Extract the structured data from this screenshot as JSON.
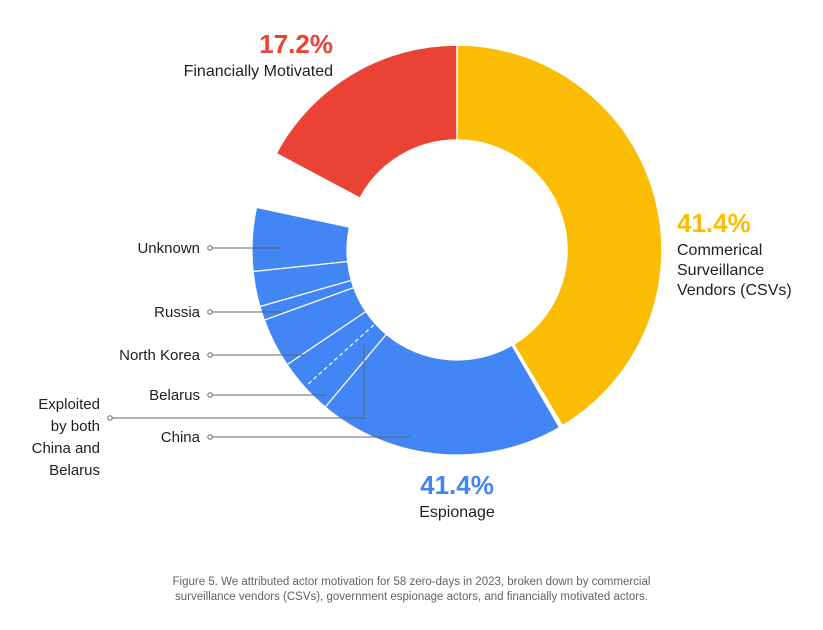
{
  "chart_data": {
    "type": "pie",
    "donut": true,
    "slices": [
      {
        "label_lines": [
          "Commerical",
          "Surveillance",
          "Vendors (CSVs)"
        ],
        "value": 41.4,
        "value_label": "41.4%",
        "color": "#FBBC04"
      },
      {
        "label_lines": [
          "Espionage"
        ],
        "value": 41.4,
        "value_label": "41.4%",
        "color": "#4285F4"
      },
      {
        "label_lines": [
          "Financially Motivated"
        ],
        "value": 17.2,
        "value_label": "17.2%",
        "color": "#EA4335"
      }
    ],
    "espionage_breakdown": [
      {
        "label": "China"
      },
      {
        "label": "Exploited by both China and Belarus",
        "label_lines": [
          "Exploited",
          "by both",
          "China and",
          "Belarus"
        ]
      },
      {
        "label": "Belarus"
      },
      {
        "label": "North Korea"
      },
      {
        "label": "Russia"
      },
      {
        "label": "Unknown"
      }
    ]
  },
  "caption": {
    "line1": "Figure 5. We attributed actor motivation for 58 zero-days in 2023, broken down by commercial",
    "line2": "surveillance vendors (CSVs), government espionage actors, and financially motivated actors."
  }
}
